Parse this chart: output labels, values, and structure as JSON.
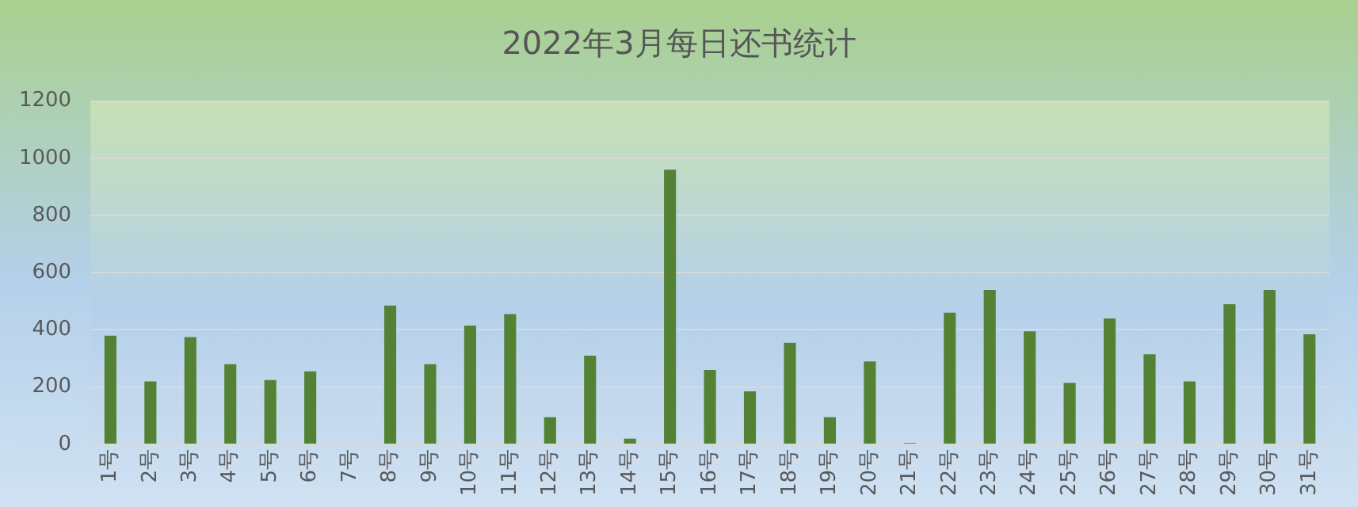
{
  "chart_data": {
    "type": "bar",
    "title": "2022年3月每日还书统计",
    "categories": [
      "1号",
      "2号",
      "3号",
      "4号",
      "5号",
      "6号",
      "7号",
      "8号",
      "9号",
      "10号",
      "11号",
      "12号",
      "13号",
      "14号",
      "15号",
      "16号",
      "17号",
      "18号",
      "19号",
      "20号",
      "21号",
      "22号",
      "23号",
      "24号",
      "25号",
      "26号",
      "27号",
      "28号",
      "29号",
      "30号",
      "31号"
    ],
    "values": [
      380,
      220,
      375,
      280,
      225,
      255,
      0,
      485,
      280,
      415,
      455,
      95,
      310,
      20,
      960,
      260,
      185,
      355,
      95,
      290,
      5,
      460,
      540,
      395,
      215,
      440,
      315,
      220,
      490,
      540,
      385
    ],
    "color": "#548235",
    "ylim": [
      0,
      1200
    ],
    "yticks": [
      0,
      200,
      400,
      600,
      800,
      1000,
      1200
    ],
    "grid": "y",
    "legend": false
  }
}
